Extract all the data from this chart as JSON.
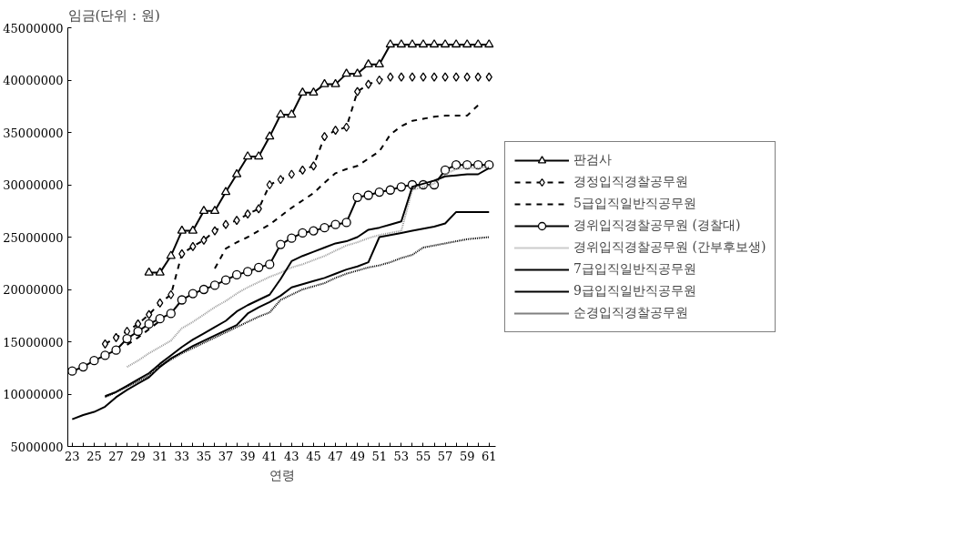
{
  "chart_data": {
    "type": "line",
    "ylabel": "임금(단위 : 원)",
    "xlabel": "연령",
    "x": [
      23,
      24,
      25,
      26,
      27,
      28,
      29,
      30,
      31,
      32,
      33,
      34,
      35,
      36,
      37,
      38,
      39,
      40,
      41,
      42,
      43,
      44,
      45,
      46,
      47,
      48,
      49,
      50,
      51,
      52,
      53,
      54,
      55,
      56,
      57,
      58,
      59,
      60,
      61
    ],
    "xlim": [
      22.6,
      61.6
    ],
    "xticks": [
      23,
      {
        "value": 24,
        "label": null
      },
      25,
      {
        "value": 26,
        "label": null
      },
      27,
      {
        "value": 28,
        "label": null
      },
      29,
      {
        "value": 30,
        "label": null
      },
      31,
      {
        "value": 32,
        "label": null
      },
      33,
      {
        "value": 34,
        "label": null
      },
      35,
      {
        "value": 36,
        "label": null
      },
      37,
      {
        "value": 38,
        "label": null
      },
      39,
      {
        "value": 40,
        "label": null
      },
      41,
      {
        "value": 42,
        "label": null
      },
      43,
      {
        "value": 44,
        "label": null
      },
      45,
      {
        "value": 46,
        "label": null
      },
      47,
      {
        "value": 48,
        "label": null
      },
      49,
      {
        "value": 50,
        "label": null
      },
      51,
      {
        "value": 52,
        "label": null
      },
      53,
      {
        "value": 54,
        "label": null
      },
      55,
      {
        "value": 56,
        "label": null
      },
      57,
      {
        "value": 58,
        "label": null
      },
      59,
      {
        "value": 60,
        "label": null
      },
      61
    ],
    "ylim": [
      5000000,
      45000000
    ],
    "yticks": [
      5000000,
      10000000,
      15000000,
      20000000,
      25000000,
      30000000,
      35000000,
      40000000,
      45000000
    ],
    "grid": false,
    "legend": "right",
    "series": [
      {
        "name": "판검사",
        "color": "#000000",
        "marker": "triangle",
        "line_style": "solid",
        "values": [
          null,
          null,
          null,
          null,
          null,
          null,
          null,
          21600000,
          21600000,
          23200000,
          25600000,
          25600000,
          27500000,
          27500000,
          29300000,
          31000000,
          32700000,
          32700000,
          34600000,
          36700000,
          36700000,
          38800000,
          38800000,
          39600000,
          39600000,
          40600000,
          40600000,
          41500000,
          41500000,
          43400000,
          43400000,
          43400000,
          43400000,
          43400000,
          43400000,
          43400000,
          43400000,
          43400000,
          43400000
        ]
      },
      {
        "name": "경정입직경찰공무원",
        "color": "#000000",
        "marker": "diamond",
        "line_style": "dashed",
        "values": [
          null,
          null,
          null,
          14800000,
          15400000,
          16000000,
          16700000,
          17600000,
          18700000,
          19500000,
          23400000,
          24100000,
          24700000,
          25600000,
          26200000,
          26600000,
          27200000,
          27700000,
          30000000,
          30500000,
          31000000,
          31400000,
          31800000,
          34600000,
          35200000,
          35500000,
          38900000,
          39600000,
          40000000,
          40300000,
          40300000,
          40300000,
          40300000,
          40300000,
          40300000,
          40300000,
          40300000,
          40300000,
          40300000
        ]
      },
      {
        "name": "5급입직일반직공무원",
        "color": "#000000",
        "marker": "none",
        "line_style": "dashed",
        "values": [
          null,
          null,
          null,
          null,
          null,
          14700000,
          15400000,
          16200000,
          17000000,
          null,
          null,
          null,
          null,
          22000000,
          23900000,
          24500000,
          25000000,
          25600000,
          26200000,
          27000000,
          27800000,
          28500000,
          29200000,
          30200000,
          31100000,
          31500000,
          31800000,
          32500000,
          33200000,
          34800000,
          35600000,
          36100000,
          36300000,
          36500000,
          36600000,
          36600000,
          36600000,
          37600000,
          null
        ]
      },
      {
        "name": "경위입직경찰공무원 (경찰대)",
        "color": "#000000",
        "marker": "circle",
        "line_style": "solid",
        "values": [
          12200000,
          12600000,
          13200000,
          13700000,
          14200000,
          15300000,
          16000000,
          16700000,
          17200000,
          17700000,
          19000000,
          19600000,
          20000000,
          20400000,
          20900000,
          21400000,
          21700000,
          22100000,
          22400000,
          24300000,
          24900000,
          25400000,
          25600000,
          25900000,
          26200000,
          26400000,
          28800000,
          29000000,
          29300000,
          29500000,
          29800000,
          30000000,
          30000000,
          30000000,
          31400000,
          31900000,
          31900000,
          31900000,
          31900000
        ]
      },
      {
        "name": "경위입직경찰공무원 (간부후보생)",
        "color": "#999999",
        "marker": "none",
        "line_style": "dotted",
        "values": [
          null,
          null,
          null,
          null,
          null,
          12600000,
          13200000,
          13900000,
          14500000,
          15100000,
          16300000,
          16900000,
          17600000,
          18300000,
          18900000,
          19600000,
          20200000,
          20700000,
          21200000,
          21600000,
          22100000,
          22400000,
          22800000,
          23200000,
          23700000,
          24200000,
          24500000,
          24900000,
          25200000,
          25400000,
          25600000,
          29500000,
          29800000,
          30100000,
          31000000,
          31500000,
          31600000,
          31600000,
          31700000
        ]
      },
      {
        "name": "7급입직일반직공무원",
        "color": "#000000",
        "marker": "none",
        "line_style": "solid",
        "values": [
          null,
          null,
          null,
          9800000,
          10200000,
          10800000,
          11400000,
          12000000,
          12900000,
          13700000,
          14500000,
          15200000,
          15800000,
          16400000,
          17000000,
          17900000,
          18500000,
          19000000,
          19500000,
          21000000,
          22700000,
          23200000,
          23600000,
          24000000,
          24400000,
          24600000,
          25000000,
          25700000,
          25900000,
          26200000,
          26500000,
          29800000,
          30100000,
          30400000,
          30800000,
          30900000,
          31000000,
          31000000,
          31600000
        ]
      },
      {
        "name": "9급입직일반직공무원",
        "color": "#000000",
        "marker": "none",
        "line_style": "solid",
        "values": [
          7600000,
          8000000,
          8300000,
          8800000,
          9700000,
          10400000,
          11000000,
          11600000,
          12600000,
          13400000,
          14000000,
          14600000,
          15100000,
          15600000,
          16100000,
          16600000,
          17700000,
          18300000,
          18800000,
          19400000,
          20200000,
          20500000,
          20800000,
          21100000,
          21500000,
          21900000,
          22200000,
          22600000,
          25000000,
          25200000,
          25400000,
          25600000,
          25800000,
          26000000,
          26300000,
          27400000,
          27400000,
          27400000,
          27400000
        ]
      },
      {
        "name": "순경입직경찰공무원",
        "color": "#000000",
        "marker": "none",
        "line_style": "dotted",
        "values": [
          null,
          null,
          null,
          9700000,
          10200000,
          10700000,
          11200000,
          11800000,
          12700000,
          13300000,
          13900000,
          14400000,
          14900000,
          15400000,
          15900000,
          16400000,
          16900000,
          17400000,
          17800000,
          19000000,
          19500000,
          20000000,
          20300000,
          20600000,
          21100000,
          21500000,
          21800000,
          22100000,
          22300000,
          22600000,
          23000000,
          23300000,
          24000000,
          24200000,
          24400000,
          24600000,
          24800000,
          24900000,
          25000000
        ]
      }
    ]
  }
}
